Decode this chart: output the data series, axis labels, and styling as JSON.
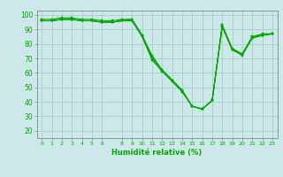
{
  "xlabel": "Humidité relative (%)",
  "bg_color": "#cce8e8",
  "grid_color": "#aacccc",
  "line_color": "#00aa00",
  "marker_color": "#00aa00",
  "xlim": [
    -0.5,
    23.5
  ],
  "ylim": [
    15,
    103
  ],
  "yticks": [
    20,
    30,
    40,
    50,
    60,
    70,
    80,
    90,
    100
  ],
  "xtick_positions": [
    0,
    1,
    2,
    3,
    4,
    5,
    6,
    8,
    9,
    10,
    11,
    12,
    13,
    14,
    15,
    16,
    17,
    18,
    19,
    20,
    21,
    22,
    23
  ],
  "xtick_labels": [
    "0",
    "1",
    "2",
    "3",
    "4",
    "5",
    "6",
    "8",
    "9",
    "10",
    "11",
    "12",
    "13",
    "14",
    "15",
    "16",
    "17",
    "18",
    "19",
    "20",
    "21",
    "22",
    "23"
  ],
  "series": [
    [
      96,
      96,
      97,
      97,
      96,
      96,
      95,
      95,
      96,
      96,
      85,
      69,
      61,
      54,
      47,
      37,
      35,
      41,
      92,
      76,
      72,
      84,
      86,
      87
    ],
    [
      96,
      96,
      97,
      97,
      96,
      96,
      95,
      95,
      96,
      97,
      86,
      72,
      62,
      55,
      48,
      37,
      35,
      41,
      93,
      77,
      73,
      85,
      87,
      87
    ],
    [
      96,
      96,
      97,
      97,
      96,
      96,
      95,
      95,
      96,
      96,
      86,
      71,
      62,
      55,
      48,
      37,
      35,
      41,
      92,
      76,
      73,
      84,
      86,
      87
    ],
    [
      97,
      97,
      98,
      98,
      97,
      97,
      96,
      96,
      97,
      97,
      86,
      70,
      62,
      55,
      47,
      37,
      35,
      41,
      93,
      76,
      73,
      85,
      86,
      87
    ]
  ]
}
